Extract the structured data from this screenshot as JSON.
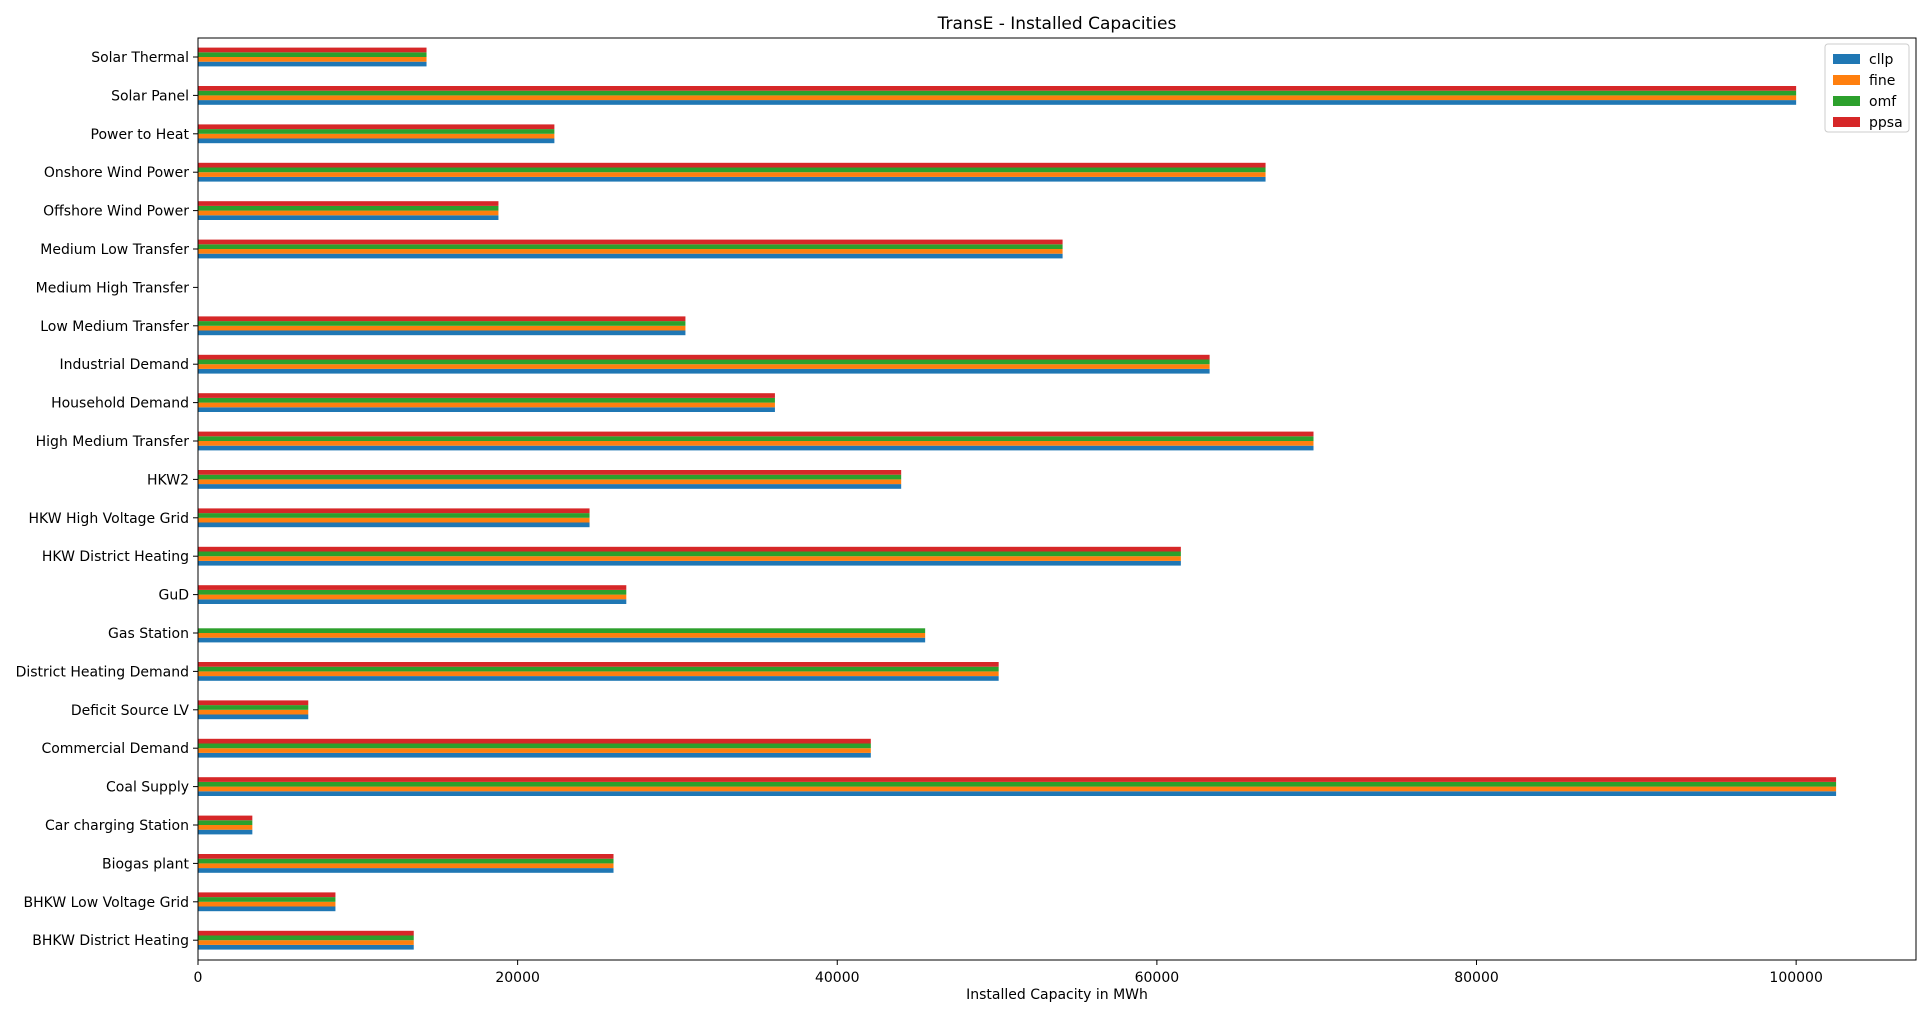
{
  "chart_data": {
    "type": "bar",
    "orientation": "horizontal",
    "title": "TransE - Installed Capacities",
    "xlabel": "Installed Capacity in MWh",
    "ylabel": "",
    "xlim": [
      0,
      107500
    ],
    "xticks": [
      0,
      20000,
      40000,
      60000,
      80000,
      100000
    ],
    "grid": false,
    "legend_position": "top-right",
    "categories": [
      "Solar Thermal",
      "Solar Panel",
      "Power to Heat",
      "Onshore Wind Power",
      "Offshore Wind Power",
      "Medium Low Transfer",
      "Medium High Transfer",
      "Low Medium Transfer",
      "Industrial Demand",
      "Household Demand",
      "High Medium Transfer",
      "HKW2",
      "HKW High Voltage Grid",
      "HKW District Heating",
      "GuD",
      "Gas Station",
      "District Heating Demand",
      "Deficit Source LV",
      "Commercial Demand",
      "Coal Supply",
      "Car charging Station",
      "Biogas plant",
      "BHKW Low Voltage Grid",
      "BHKW District Heating"
    ],
    "series": [
      {
        "name": "cllp",
        "color": "#1f77b4",
        "values": [
          14300,
          100000,
          22300,
          66800,
          18800,
          54100,
          0,
          30500,
          63300,
          36100,
          69800,
          44000,
          24500,
          61500,
          26800,
          45500,
          50100,
          6900,
          42100,
          102500,
          3400,
          26000,
          8600,
          13500
        ]
      },
      {
        "name": "fine",
        "color": "#ff7f0e",
        "values": [
          14300,
          100000,
          22300,
          66800,
          18800,
          54100,
          0,
          30500,
          63300,
          36100,
          69800,
          44000,
          24500,
          61500,
          26800,
          45500,
          50100,
          6900,
          42100,
          102500,
          3400,
          26000,
          8600,
          13500
        ]
      },
      {
        "name": "omf",
        "color": "#2ca02c",
        "values": [
          14300,
          100000,
          22300,
          66800,
          18800,
          54100,
          0,
          30500,
          63300,
          36100,
          69800,
          44000,
          24500,
          61500,
          26800,
          45500,
          50100,
          6900,
          42100,
          102500,
          3400,
          26000,
          8600,
          13500
        ]
      },
      {
        "name": "ppsa",
        "color": "#d62728",
        "values": [
          14300,
          100000,
          22300,
          66800,
          18800,
          54100,
          0,
          30500,
          63300,
          36100,
          69800,
          44000,
          24500,
          61500,
          26800,
          0,
          50100,
          6900,
          42100,
          102500,
          3400,
          26000,
          8600,
          13500
        ]
      }
    ]
  }
}
